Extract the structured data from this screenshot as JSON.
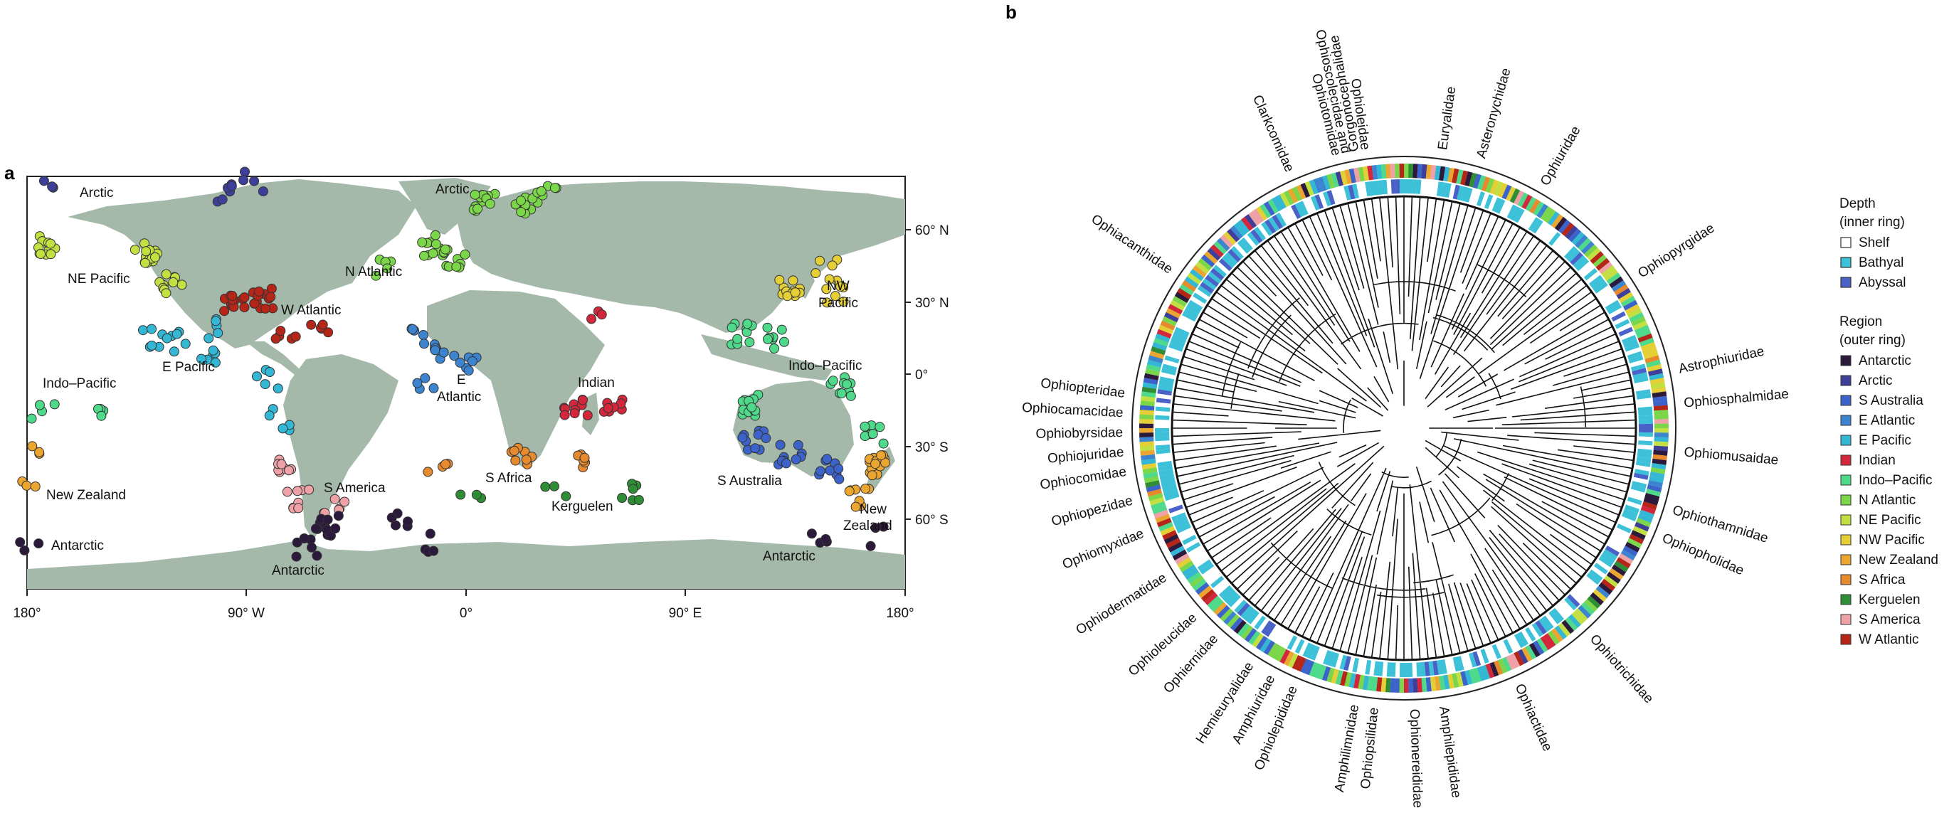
{
  "panel_a": {
    "letter": "a",
    "region_labels": [
      {
        "key": "arctic_w",
        "text": "Arctic"
      },
      {
        "key": "arctic_e",
        "text": "Arctic"
      },
      {
        "key": "ne_pacific",
        "text": "NE Pacific"
      },
      {
        "key": "n_atlantic",
        "text": "N Atlantic"
      },
      {
        "key": "w_atlantic",
        "text": "W Atlantic"
      },
      {
        "key": "nw_pacific_1",
        "text": "NW"
      },
      {
        "key": "nw_pacific_2",
        "text": "Pacific"
      },
      {
        "key": "e_pacific",
        "text": "E Pacific"
      },
      {
        "key": "indo_pacific_w",
        "text": "Indo–Pacific"
      },
      {
        "key": "indo_pacific_e",
        "text": "Indo–Pacific"
      },
      {
        "key": "e_atlantic_1",
        "text": "E"
      },
      {
        "key": "e_atlantic_2",
        "text": "Atlantic"
      },
      {
        "key": "indian",
        "text": "Indian"
      },
      {
        "key": "new_zealand_w",
        "text": "New Zealand"
      },
      {
        "key": "new_zealand_e1",
        "text": "New"
      },
      {
        "key": "new_zealand_e2",
        "text": "Zealand"
      },
      {
        "key": "s_america",
        "text": "S America"
      },
      {
        "key": "s_africa",
        "text": "S Africa"
      },
      {
        "key": "kerguelen",
        "text": "Kerguelen"
      },
      {
        "key": "s_australia",
        "text": "S Australia"
      },
      {
        "key": "antarctic_w",
        "text": "Antarctic"
      },
      {
        "key": "antarctic_c",
        "text": "Antarctic"
      },
      {
        "key": "antarctic_e",
        "text": "Antarctic"
      }
    ],
    "lat_ticks": [
      "60° N",
      "30° N",
      "0°",
      "30° S",
      "60° S"
    ],
    "lon_ticks": [
      "180°",
      "90° W",
      "0°",
      "90° E",
      "180°"
    ]
  },
  "panel_b": {
    "letter": "b",
    "families": [
      "Gorgonocephalidae",
      "Euryalidae",
      "Asteronychidae",
      "Ophiuridae",
      "Ophiopyrgidae",
      "Astrophiuridae",
      "Ophiosphalmidae",
      "Ophiomusaidae",
      "Ophiothamnidae",
      "Ophiopholidae",
      "Ophiotrichidae",
      "Ophiactidae",
      "Amphilepididae",
      "Amphiuridae",
      "Ophiopsilidae",
      "Amphilimnidae",
      "Ophionereididae",
      "Ophiolepididae",
      "Hemieuryalidae",
      "Ophiernidae",
      "Ophioleucidae",
      "Ophiodermatidae",
      "Ophiomyxidae",
      "Ophiopezidae",
      "Ophiocomidae",
      "Ophiojuridae",
      "Ophiobyrsidae",
      "Ophiocamacidae",
      "Ophiopteridae",
      "Ophiacanthidae",
      "Clarkcomidae",
      "Ophiotomidae",
      "Ophioscolecidae and",
      "Ophioleidae"
    ],
    "legend": {
      "depth_title_1": "Depth",
      "depth_title_2": "(inner ring)",
      "depth_items": [
        {
          "label": "Shelf",
          "color": "#ffffff"
        },
        {
          "label": "Bathyal",
          "color": "#3cc1d8"
        },
        {
          "label": "Abyssal",
          "color": "#4a62c8"
        }
      ],
      "region_title_1": "Region",
      "region_title_2": "(outer ring)",
      "region_items": [
        {
          "label": "Antarctic",
          "color": "#2b1a3c"
        },
        {
          "label": "Arctic",
          "color": "#3d3f99"
        },
        {
          "label": "S Australia",
          "color": "#3b63c9"
        },
        {
          "label": "E Atlantic",
          "color": "#3c84d0"
        },
        {
          "label": "E Pacific",
          "color": "#33b7d4"
        },
        {
          "label": "Indian",
          "color": "#d3283c"
        },
        {
          "label": "Indo–Pacific",
          "color": "#4fd98a"
        },
        {
          "label": "N Atlantic",
          "color": "#7bd64a"
        },
        {
          "label": "NE Pacific",
          "color": "#c3e043"
        },
        {
          "label": "NW Pacific",
          "color": "#e4cf36"
        },
        {
          "label": "New Zealand",
          "color": "#eba531"
        },
        {
          "label": "S Africa",
          "color": "#e68a2d"
        },
        {
          "label": "Kerguelen",
          "color": "#2f8d35"
        },
        {
          "label": "S America",
          "color": "#eea2a8"
        },
        {
          "label": "W Atlantic",
          "color": "#b52518"
        }
      ]
    }
  },
  "colors": {
    "land": "#a5b9aa",
    "ocean": "#ffffff",
    "tree": "#111111",
    "shelf": "#ffffff",
    "bathyal": "#3cc1d8",
    "abyssal": "#4a62c8"
  }
}
